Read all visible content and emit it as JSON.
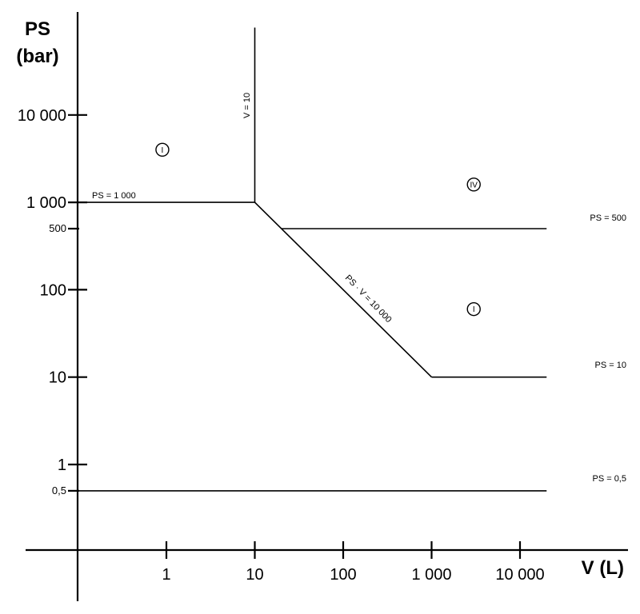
{
  "chart_data": {
    "type": "line",
    "x_axis": {
      "label": "V (L)",
      "scale": "log",
      "ticks": [
        {
          "value": 1,
          "label": "1"
        },
        {
          "value": 10,
          "label": "10"
        },
        {
          "value": 100,
          "label": "100"
        },
        {
          "value": 1000,
          "label": "1 000"
        },
        {
          "value": 10000,
          "label": "10 000"
        }
      ]
    },
    "y_axis": {
      "label_line1": "PS",
      "label_line2": "(bar)",
      "scale": "log",
      "ticks": [
        {
          "value": 0.5,
          "label": "0,5",
          "size": "small"
        },
        {
          "value": 1,
          "label": "1",
          "size": "big"
        },
        {
          "value": 10,
          "label": "10",
          "size": "big"
        },
        {
          "value": 100,
          "label": "100",
          "size": "big"
        },
        {
          "value": 500,
          "label": "500",
          "size": "small"
        },
        {
          "value": 1000,
          "label": "1 000",
          "size": "big"
        },
        {
          "value": 10000,
          "label": "10 000",
          "size": "big"
        }
      ]
    },
    "series": [
      {
        "label": "PS = 1 000",
        "points": [
          [
            0.1,
            1000
          ],
          [
            10,
            1000
          ]
        ]
      },
      {
        "label": "V = 10",
        "points": [
          [
            10,
            1000
          ],
          [
            10,
            100000
          ]
        ]
      },
      {
        "label": "PS · V = 10 000",
        "points": [
          [
            10,
            1000
          ],
          [
            1000,
            10
          ]
        ]
      },
      {
        "label": "PS = 500",
        "points": [
          [
            20,
            500
          ],
          [
            20000,
            500
          ]
        ]
      },
      {
        "label": "PS = 10",
        "points": [
          [
            1000,
            10
          ],
          [
            20000,
            10
          ]
        ]
      },
      {
        "label": "PS = 0,5",
        "points": [
          [
            0.1,
            0.5
          ],
          [
            20000,
            0.5
          ]
        ]
      }
    ],
    "regions": [
      {
        "label": "I",
        "x": 0.9,
        "y": 4000
      },
      {
        "label": "IV",
        "x": 3000,
        "y": 1600
      },
      {
        "label": "I",
        "x": 3000,
        "y": 60
      }
    ]
  }
}
